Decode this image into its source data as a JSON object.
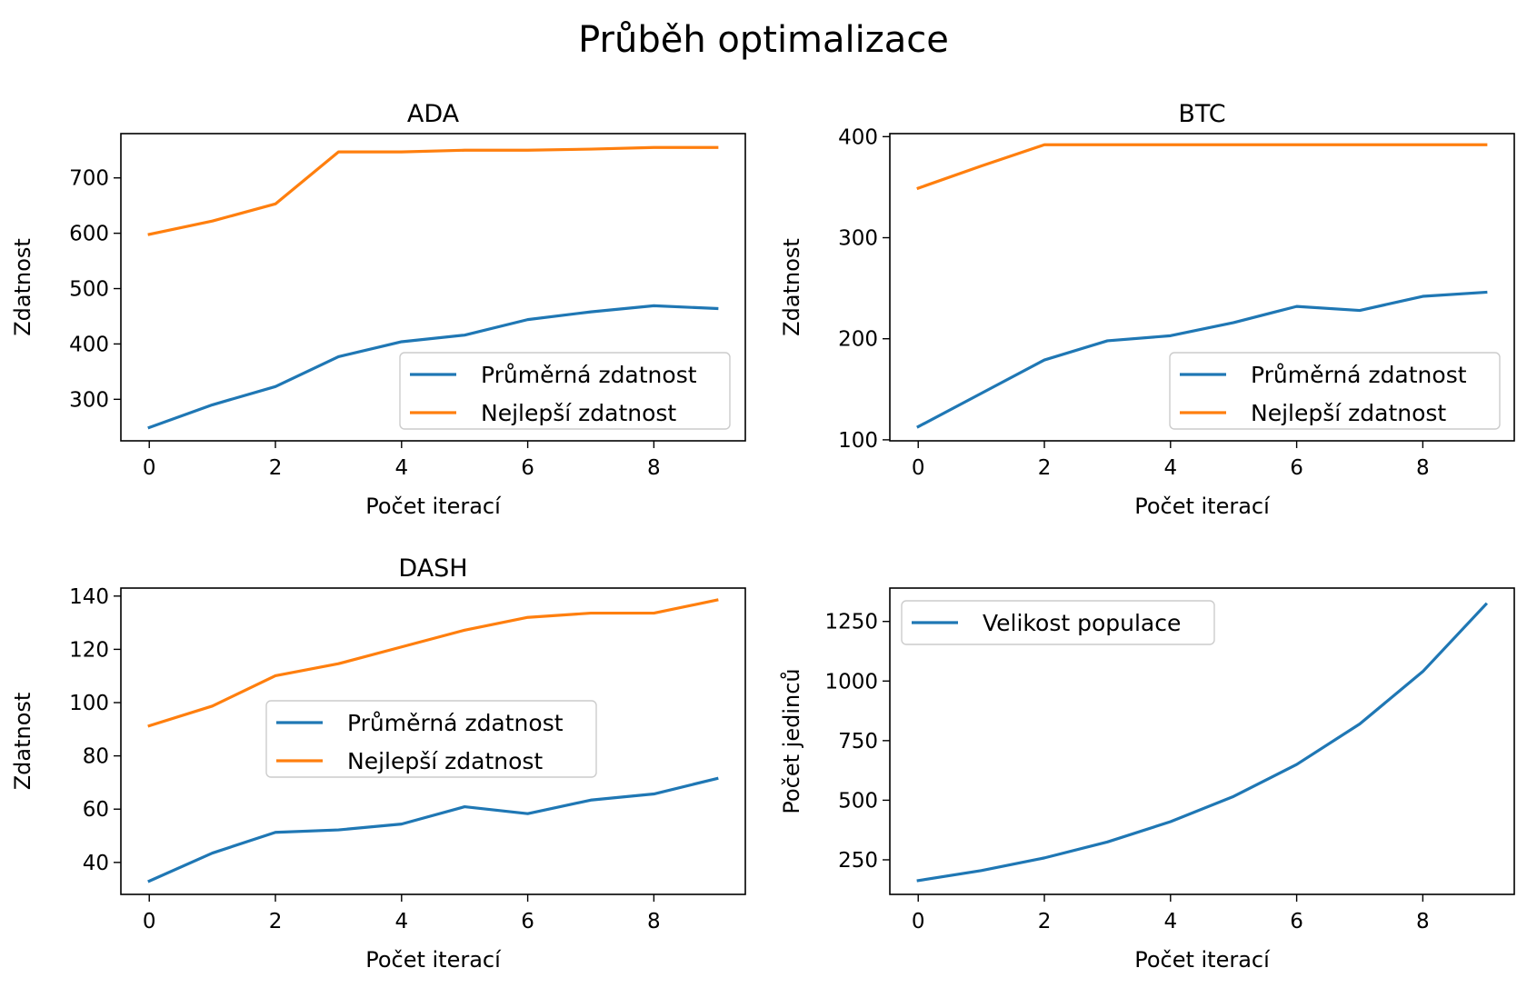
{
  "figure_title": "Průběh optimalizace",
  "colors": {
    "avg": "#1f77b4",
    "best": "#ff7f0e",
    "axes": "#000000",
    "background": "#ffffff"
  },
  "chart_data": [
    {
      "type": "line",
      "title": "ADA",
      "xlabel": "Počet iterací",
      "ylabel": "Zdatnost",
      "xlim": [
        -0.45,
        9.45
      ],
      "ylim": [
        225,
        780
      ],
      "xticks": [
        0,
        2,
        4,
        6,
        8
      ],
      "yticks": [
        300,
        400,
        500,
        600,
        700
      ],
      "legend_position": "lower right",
      "x": [
        0,
        1,
        2,
        3,
        4,
        5,
        6,
        7,
        8,
        9
      ],
      "series": [
        {
          "name": "Průměrná zdatnost",
          "color": "#1f77b4",
          "values": [
            249,
            290,
            323,
            377,
            404,
            416,
            444,
            458,
            469,
            464
          ]
        },
        {
          "name": "Nejlepší zdatnost",
          "color": "#ff7f0e",
          "values": [
            598,
            622,
            653,
            747,
            747,
            750,
            750,
            752,
            755,
            755
          ]
        }
      ]
    },
    {
      "type": "line",
      "title": "BTC",
      "xlabel": "Počet iterací",
      "ylabel": "Zdatnost",
      "xlim": [
        -0.45,
        9.45
      ],
      "ylim": [
        99,
        403
      ],
      "xticks": [
        0,
        2,
        4,
        6,
        8
      ],
      "yticks": [
        100,
        200,
        300,
        400
      ],
      "legend_position": "lower right",
      "x": [
        0,
        1,
        2,
        3,
        4,
        5,
        6,
        7,
        8,
        9
      ],
      "series": [
        {
          "name": "Průměrná zdatnost",
          "color": "#1f77b4",
          "values": [
            113,
            146,
            179,
            198,
            203,
            216,
            232,
            228,
            242,
            246
          ]
        },
        {
          "name": "Nejlepší zdatnost",
          "color": "#ff7f0e",
          "values": [
            349,
            371,
            392,
            392,
            392,
            392,
            392,
            392,
            392,
            392
          ]
        }
      ]
    },
    {
      "type": "line",
      "title": "DASH",
      "xlabel": "Počet iterací",
      "ylabel": "Zdatnost",
      "xlim": [
        -0.45,
        9.45
      ],
      "ylim": [
        28,
        143
      ],
      "xticks": [
        0,
        2,
        4,
        6,
        8
      ],
      "yticks": [
        40,
        60,
        80,
        100,
        120,
        140
      ],
      "legend_position": "center",
      "x": [
        0,
        1,
        2,
        3,
        4,
        5,
        6,
        7,
        8,
        9
      ],
      "series": [
        {
          "name": "Průměrná zdatnost",
          "color": "#1f77b4",
          "values": [
            33,
            43.5,
            51.3,
            52.2,
            54.4,
            60.9,
            58.3,
            63.4,
            65.7,
            71.5
          ]
        },
        {
          "name": "Nejlepší zdatnost",
          "color": "#ff7f0e",
          "values": [
            91.3,
            98.7,
            110.1,
            114.6,
            120.9,
            127.2,
            132,
            133.6,
            133.6,
            138.5
          ]
        }
      ]
    },
    {
      "type": "line",
      "title": "",
      "xlabel": "Počet iterací",
      "ylabel": "Počet jedinců",
      "xlim": [
        -0.45,
        9.45
      ],
      "ylim": [
        105,
        1390
      ],
      "xticks": [
        0,
        2,
        4,
        6,
        8
      ],
      "yticks": [
        250,
        500,
        750,
        1000,
        1250
      ],
      "legend_position": "upper left",
      "x": [
        0,
        1,
        2,
        3,
        4,
        5,
        6,
        7,
        8,
        9
      ],
      "series": [
        {
          "name": "Velikost populace",
          "color": "#1f77b4",
          "values": [
            163,
            205,
            258,
            325,
            410,
            516,
            650,
            820,
            1040,
            1322
          ]
        }
      ]
    }
  ]
}
